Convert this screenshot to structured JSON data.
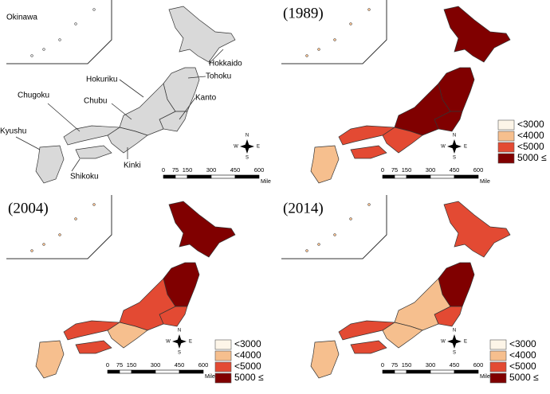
{
  "panels": [
    {
      "labels": [
        {
          "text": "Okinawa",
          "at": "okinawa"
        },
        {
          "text": "Hokkaido",
          "at": "hokkaido"
        },
        {
          "text": "Tohoku",
          "at": "tohoku"
        },
        {
          "text": "Hokuriku",
          "at": "hokuriku"
        },
        {
          "text": "Kanto",
          "at": "kanto"
        },
        {
          "text": "Chugoku",
          "at": "chugoku"
        },
        {
          "text": "Chubu",
          "at": "chubu"
        },
        {
          "text": "Kyushu",
          "at": "kyushu"
        },
        {
          "text": "Kinki",
          "at": "kinki"
        },
        {
          "text": "Shikoku",
          "at": "shikoku"
        }
      ],
      "fills": {
        "hokkaido": "#d9d9d9",
        "tohoku": "#d9d9d9",
        "kanto": "#d9d9d9",
        "chubu": "#d9d9d9",
        "kinki": "#d9d9d9",
        "chugoku": "#d9d9d9",
        "shikoku": "#d9d9d9",
        "kyushu": "#d9d9d9"
      }
    },
    {
      "title": "(1989)",
      "legend": true,
      "fills": {
        "hokkaido": "#800000",
        "tohoku": "#800000",
        "kanto": "#800000",
        "chubu": "#800000",
        "kinki": "#e34a33",
        "chugoku": "#e34a33",
        "shikoku": "#e34a33",
        "kyushu": "#f6bf8e"
      }
    },
    {
      "title": "(2004)",
      "legend": true,
      "fills": {
        "hokkaido": "#800000",
        "tohoku": "#800000",
        "kanto": "#e34a33",
        "chubu": "#e34a33",
        "kinki": "#f6bf8e",
        "chugoku": "#e34a33",
        "shikoku": "#e34a33",
        "kyushu": "#f6bf8e"
      }
    },
    {
      "title": "(2014)",
      "legend": true,
      "fills": {
        "hokkaido": "#e34a33",
        "tohoku": "#800000",
        "kanto": "#e34a33",
        "chubu": "#f6bf8e",
        "kinki": "#f6bf8e",
        "chugoku": "#e34a33",
        "shikoku": "#e34a33",
        "kyushu": "#f6bf8e"
      }
    }
  ],
  "legend": [
    {
      "label": "<3000",
      "color": "#fdf5e8"
    },
    {
      "label": "<4000",
      "color": "#f6bf8e"
    },
    {
      "label": "<5000",
      "color": "#e34a33"
    },
    {
      "label": "5000 ≤",
      "color": "#800000"
    }
  ],
  "scale": {
    "ticks": [
      "0",
      "75",
      "150",
      "300",
      "450",
      "600"
    ],
    "unit": "Mile"
  },
  "compass": {
    "n": "N",
    "s": "S",
    "e": "E",
    "w": "W"
  }
}
